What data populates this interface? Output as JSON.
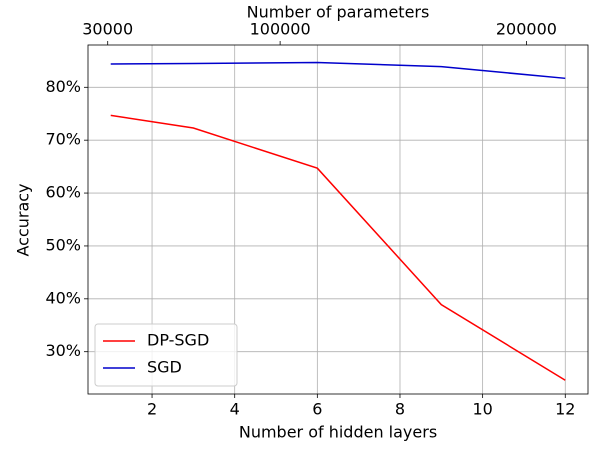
{
  "chart_data": {
    "type": "line",
    "xlabel": "Number of hidden layers",
    "ylabel": "Accuracy",
    "x2label": "Number of parameters",
    "x": [
      1,
      3,
      6,
      9,
      12
    ],
    "series": [
      {
        "name": "DP-SGD",
        "color": "#ff0000",
        "values": [
          74.7,
          72.3,
          64.7,
          38.9,
          24.6
        ]
      },
      {
        "name": "SGD",
        "color": "#0000cc",
        "values": [
          84.4,
          84.5,
          84.7,
          83.9,
          81.7
        ]
      }
    ],
    "xlim": [
      0.45,
      12.55
    ],
    "xticks": [
      2,
      4,
      6,
      8,
      10,
      12
    ],
    "ylim": [
      22,
      88
    ],
    "yticks": [
      {
        "value": 30,
        "label": "30%"
      },
      {
        "value": 40,
        "label": "40%"
      },
      {
        "value": 50,
        "label": "50%"
      },
      {
        "value": 60,
        "label": "60%"
      },
      {
        "value": 70,
        "label": "70%"
      },
      {
        "value": 80,
        "label": "80%"
      }
    ],
    "x2lim": [
      22000,
      225000
    ],
    "x2ticks": [
      30000,
      100000,
      200000
    ],
    "grid": true,
    "legend": "lower left"
  }
}
